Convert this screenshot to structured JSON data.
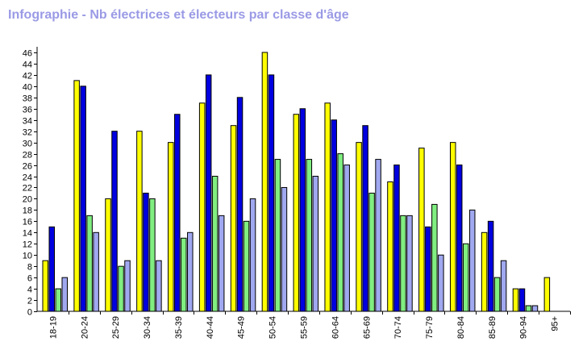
{
  "chart_data": {
    "type": "bar",
    "title": "Infographie - Nb électrices et électeurs par classe d'âge",
    "xlabel": "",
    "ylabel": "",
    "ylim": [
      0,
      47
    ],
    "yticks": [
      0,
      2,
      4,
      6,
      8,
      10,
      12,
      14,
      16,
      18,
      20,
      22,
      24,
      26,
      28,
      30,
      32,
      34,
      36,
      38,
      40,
      42,
      44,
      46
    ],
    "grid": false,
    "legend": "none",
    "categories": [
      "18-19",
      "20-24",
      "25-29",
      "30-34",
      "35-39",
      "40-44",
      "45-49",
      "50-54",
      "55-59",
      "60-64",
      "65-69",
      "70-74",
      "75-79",
      "80-84",
      "85-89",
      "90-94",
      "95+"
    ],
    "series": [
      {
        "color": "#ffff00",
        "values": [
          9,
          41,
          20,
          32,
          30,
          37,
          33,
          46,
          35,
          37,
          30,
          23,
          29,
          30,
          14,
          4,
          6
        ]
      },
      {
        "color": "#0000e0",
        "values": [
          15,
          40,
          32,
          21,
          35,
          42,
          38,
          42,
          36,
          34,
          33,
          26,
          15,
          26,
          16,
          4,
          0
        ]
      },
      {
        "color": "#80ee80",
        "values": [
          4,
          17,
          8,
          20,
          13,
          24,
          16,
          27,
          27,
          28,
          21,
          17,
          19,
          12,
          6,
          1,
          0
        ]
      },
      {
        "color": "#a0a8f0",
        "values": [
          6,
          14,
          9,
          9,
          14,
          17,
          20,
          22,
          24,
          26,
          27,
          17,
          10,
          18,
          9,
          1,
          0
        ]
      }
    ]
  }
}
